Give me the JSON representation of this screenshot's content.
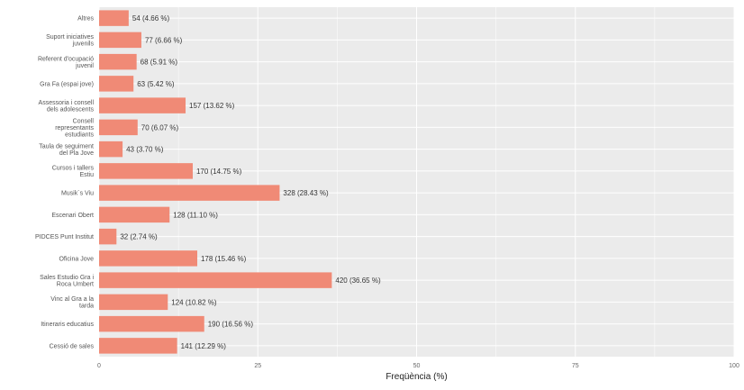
{
  "chart_data": {
    "type": "bar",
    "orientation": "horizontal",
    "xlabel": "Freqüència (%)",
    "xlim": [
      0,
      100
    ],
    "xticks": [
      0,
      25,
      50,
      75,
      100
    ],
    "grid": true,
    "colors": {
      "bar": "#f08a76",
      "panel": "#ebebeb",
      "grid": "#ffffff"
    },
    "bars": [
      {
        "category": "Altres",
        "count": 54,
        "percent": 4.66,
        "label": "54 (4.66 %)"
      },
      {
        "category": "Suport iniciatives juvenils",
        "count": 77,
        "percent": 6.66,
        "label": "77 (6.66 %)"
      },
      {
        "category": "Referent d'ocupació juvenil",
        "count": 68,
        "percent": 5.91,
        "label": "68 (5.91 %)"
      },
      {
        "category": "Gra Fa (espai jove)",
        "count": 63,
        "percent": 5.42,
        "label": "63 (5.42 %)"
      },
      {
        "category": "Assessoria i consell dels adolescents",
        "count": 157,
        "percent": 13.62,
        "label": "157 (13.62 %)"
      },
      {
        "category": "Consell representants estudiants",
        "count": 70,
        "percent": 6.07,
        "label": "70 (6.07 %)"
      },
      {
        "category": "Taula de seguiment del Pla Jove",
        "count": 43,
        "percent": 3.7,
        "label": "43 (3.70 %)"
      },
      {
        "category": "Cursos i tallers Estiu",
        "count": 170,
        "percent": 14.75,
        "label": "170 (14.75 %)"
      },
      {
        "category": "Musik´s Viu",
        "count": 328,
        "percent": 28.43,
        "label": "328 (28.43 %)"
      },
      {
        "category": "Escenari Obert",
        "count": 128,
        "percent": 11.1,
        "label": "128 (11.10 %)"
      },
      {
        "category": "PIDCES Punt Institut",
        "count": 32,
        "percent": 2.74,
        "label": "32 (2.74 %)"
      },
      {
        "category": "Oficina Jove",
        "count": 178,
        "percent": 15.46,
        "label": "178 (15.46 %)"
      },
      {
        "category": "Sales Estudio Gra i Roca Umbert",
        "count": 420,
        "percent": 36.65,
        "label": "420 (36.65 %)"
      },
      {
        "category": "Vinc al Gra a la tarda",
        "count": 124,
        "percent": 10.82,
        "label": "124 (10.82 %)"
      },
      {
        "category": "Itineraris educatius",
        "count": 190,
        "percent": 16.56,
        "label": "190 (16.56 %)"
      },
      {
        "category": "Cessió de sales",
        "count": 141,
        "percent": 12.29,
        "label": "141 (12.29 %)"
      }
    ]
  }
}
